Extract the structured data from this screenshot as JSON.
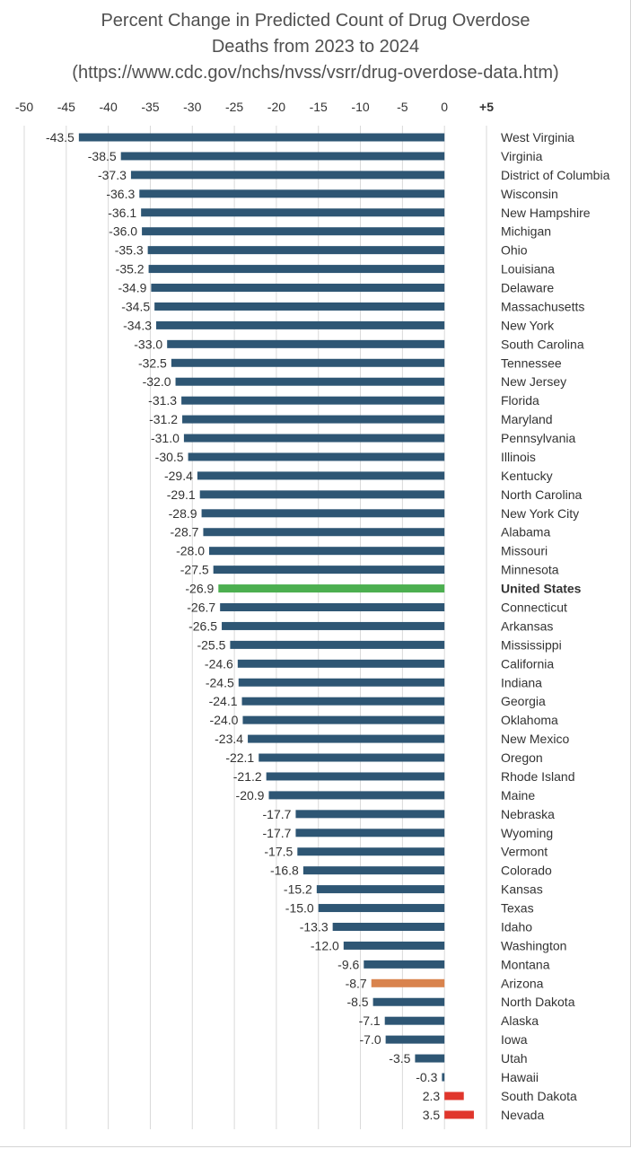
{
  "chart_data": {
    "type": "bar",
    "orientation": "horizontal",
    "title_lines": [
      "Percent Change in Predicted Count of Drug Overdose",
      "Deaths from 2023 to 2024",
      "(https://www.cdc.gov/nchs/nvss/vsrr/drug-overdose-data.htm)"
    ],
    "xlim": [
      -50,
      5
    ],
    "x_tick_labels": [
      "-50",
      "-45",
      "-40",
      "-35",
      "-30",
      "-25",
      "-20",
      "-15",
      "-10",
      "-5",
      "0",
      "+5"
    ],
    "x_tick_values": [
      -50,
      -45,
      -40,
      -35,
      -30,
      -25,
      -20,
      -15,
      -10,
      -5,
      0,
      5
    ],
    "grid": true,
    "default_color": "#2e5674",
    "highlight_colors": {
      "United States": "#4caf50",
      "Arizona": "#d9834d",
      "positive": "#e0362c"
    },
    "label_colors": {
      "United States": "#2e86c1",
      "Arizona": "#d9834d"
    },
    "categories": [
      "West Virginia",
      "Virginia",
      "District of Columbia",
      "Wisconsin",
      "New Hampshire",
      "Michigan",
      "Ohio",
      "Louisiana",
      "Delaware",
      "Massachusetts",
      "New York",
      "South Carolina",
      "Tennessee",
      "New Jersey",
      "Florida",
      "Maryland",
      "Pennsylvania",
      "Illinois",
      "Kentucky",
      "North Carolina",
      "New York City",
      "Alabama",
      "Missouri",
      "Minnesota",
      "United States",
      "Connecticut",
      "Arkansas",
      "Mississippi",
      "California",
      "Indiana",
      "Georgia",
      "Oklahoma",
      "New Mexico",
      "Oregon",
      "Rhode Island",
      "Maine",
      "Nebraska",
      "Wyoming",
      "Vermont",
      "Colorado",
      "Kansas",
      "Texas",
      "Idaho",
      "Washington",
      "Montana",
      "Arizona",
      "North Dakota",
      "Alaska",
      "Iowa",
      "Utah",
      "Hawaii",
      "South Dakota",
      "Nevada"
    ],
    "values": [
      -43.5,
      -38.5,
      -37.3,
      -36.3,
      -36.1,
      -36.0,
      -35.3,
      -35.2,
      -34.9,
      -34.5,
      -34.3,
      -33.0,
      -32.5,
      -32.0,
      -31.3,
      -31.2,
      -31.0,
      -30.5,
      -29.4,
      -29.1,
      -28.9,
      -28.7,
      -28.0,
      -27.5,
      -26.9,
      -26.7,
      -26.5,
      -25.5,
      -24.6,
      -24.5,
      -24.1,
      -24.0,
      -23.4,
      -22.1,
      -21.2,
      -20.9,
      -17.7,
      -17.7,
      -17.5,
      -16.8,
      -15.2,
      -15.0,
      -13.3,
      -12.0,
      -9.6,
      -8.7,
      -8.5,
      -7.1,
      -7.0,
      -3.5,
      -0.3,
      2.3,
      3.5
    ],
    "value_labels": [
      "-43.5",
      "-38.5",
      "-37.3",
      "-36.3",
      "-36.1",
      "-36.0",
      "-35.3",
      "-35.2",
      "-34.9",
      "-34.5",
      "-34.3",
      "-33.0",
      "-32.5",
      "-32.0",
      "-31.3",
      "-31.2",
      "-31.0",
      "-30.5",
      "-29.4",
      "-29.1",
      "-28.9",
      "-28.7",
      "-28.0",
      "-27.5",
      "-26.9",
      "-26.7",
      "-26.5",
      "-25.5",
      "-24.6",
      "-24.5",
      "-24.1",
      "-24.0",
      "-23.4",
      "-22.1",
      "-21.2",
      "-20.9",
      "-17.7",
      "-17.7",
      "-17.5",
      "-16.8",
      "-15.2",
      "-15.0",
      "-13.3",
      "-12.0",
      "-9.6",
      "-8.7",
      "-8.5",
      "-7.1",
      "-7.0",
      "-3.5",
      "-0.3",
      "2.3",
      "3.5"
    ]
  }
}
